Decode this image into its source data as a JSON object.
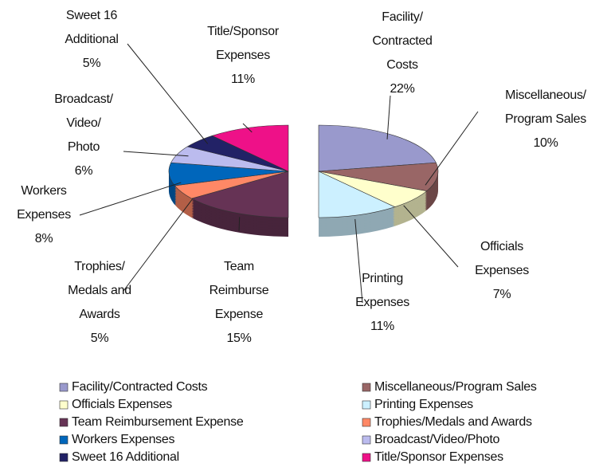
{
  "chart_data": {
    "type": "pie",
    "categories": [
      "Facility/Contracted Costs",
      "Miscellaneous/Program Sales",
      "Officials Expenses",
      "Printing Expenses",
      "Team Reimbursement Expense",
      "Trophies/Medals and Awards",
      "Workers Expenses",
      "Broadcast/Video/Photo",
      "Sweet 16 Additional",
      "Title/Sponsor Expenses"
    ],
    "slice_labels": [
      [
        "Facility/",
        "Contracted",
        "Costs"
      ],
      [
        "Miscellaneous/",
        "Program Sales"
      ],
      [
        "Officials",
        "Expenses"
      ],
      [
        "Printing",
        "Expenses"
      ],
      [
        "Team",
        "Reimburse",
        "Expense"
      ],
      [
        "Trophies/",
        "Medals and",
        "Awards"
      ],
      [
        "Workers",
        "Expenses"
      ],
      [
        "Broadcast/",
        "Video/",
        "Photo"
      ],
      [
        "Sweet 16",
        "Additional"
      ],
      [
        "Title/Sponsor",
        "Expenses"
      ]
    ],
    "values": [
      22,
      10,
      7,
      11,
      15,
      5,
      8,
      6,
      5,
      11
    ],
    "value_labels": [
      "22%",
      "10%",
      "7%",
      "11%",
      "15%",
      "5%",
      "8%",
      "6%",
      "5%",
      "11%"
    ],
    "colors": [
      "#9999cc",
      "#996666",
      "#ffffcc",
      "#ccf0ff",
      "#663355",
      "#ff8866",
      "#0066bb",
      "#bbbbee",
      "#222266",
      "#ee1188"
    ],
    "legend": "bottom"
  }
}
